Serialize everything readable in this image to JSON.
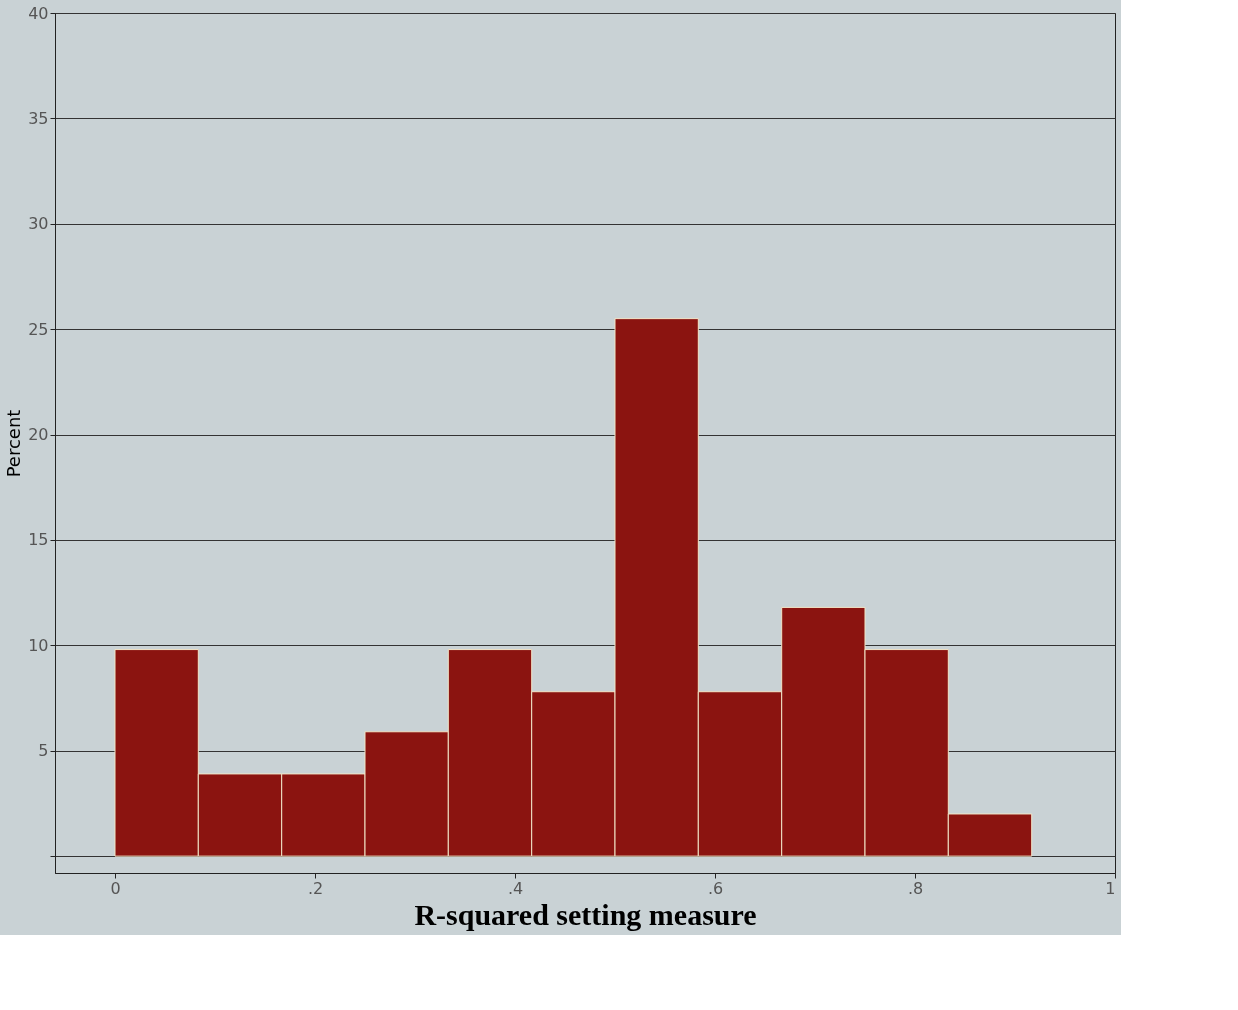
{
  "chart_data": {
    "type": "histogram",
    "xlabel": "R-squared setting measure",
    "ylabel": "Percent",
    "bins": [
      0,
      0.0833,
      0.1667,
      0.25,
      0.3333,
      0.4167,
      0.5,
      0.5833,
      0.6667,
      0.75,
      0.8333,
      0.9167
    ],
    "values": [
      9.8,
      3.9,
      3.9,
      5.9,
      9.8,
      7.8,
      25.5,
      7.8,
      11.8,
      9.8,
      2.0
    ],
    "color": "#8b1410",
    "xlim": [
      -0.06,
      1.0
    ],
    "xticks": [
      0,
      {
        "value": 0.2,
        "label": ".2"
      },
      {
        "value": 0.4,
        "label": ".4"
      },
      {
        "value": 0.6,
        "label": ".6"
      },
      {
        "value": 0.8,
        "label": ".8"
      },
      1
    ],
    "ylim": [
      -0.8,
      40
    ],
    "yticks": [
      {
        "value": 0,
        "label": null
      },
      5,
      10,
      15,
      20,
      25,
      30,
      35,
      40
    ],
    "grid": "y"
  }
}
